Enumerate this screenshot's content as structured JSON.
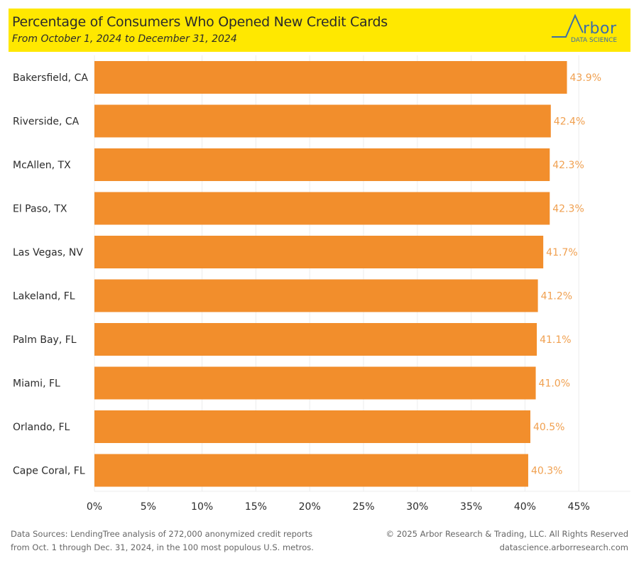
{
  "header": {
    "title": "Percentage of Consumers Who Opened New Credit Cards",
    "subtitle": "From October 1, 2024 to December 31, 2024",
    "logo_main": "rbor",
    "logo_sub": "DATA SCIENCE",
    "logo_text": "Arbor DATA SCIENCE"
  },
  "colors": {
    "header_bg": "#ffe800",
    "bar": "#f28e2c",
    "value_label": "#f0a050",
    "logo": "#3d6ea8"
  },
  "chart_data": {
    "type": "bar",
    "orientation": "horizontal",
    "title": "Percentage of Consumers Who Opened New Credit Cards",
    "subtitle": "From October 1, 2024 to December 31, 2024",
    "xlabel": "",
    "ylabel": "",
    "categories": [
      "Bakersfield, CA",
      "Riverside, CA",
      "McAllen, TX",
      "El Paso, TX",
      "Las Vegas, NV",
      "Lakeland, FL",
      "Palm Bay, FL",
      "Miami, FL",
      "Orlando, FL",
      "Cape Coral, FL"
    ],
    "values": [
      43.9,
      42.4,
      42.3,
      42.3,
      41.7,
      41.2,
      41.1,
      41.0,
      40.5,
      40.3
    ],
    "value_labels": [
      "43.9%",
      "42.4%",
      "42.3%",
      "42.3%",
      "41.7%",
      "41.2%",
      "41.1%",
      "41.0%",
      "40.5%",
      "40.3%"
    ],
    "xlim": [
      0,
      49.5
    ],
    "xticks": [
      0,
      5,
      10,
      15,
      20,
      25,
      30,
      35,
      40,
      45
    ],
    "xtick_labels": [
      "0%",
      "5%",
      "10%",
      "15%",
      "20%",
      "25%",
      "30%",
      "35%",
      "40%",
      "45%"
    ],
    "grid": true,
    "legend": "none"
  },
  "footer": {
    "source_line1": "Data Sources: LendingTree analysis of 272,000 anonymized credit reports",
    "source_line2": "from Oct. 1 through Dec. 31, 2024, in the 100 most populous U.S. metros.",
    "copyright": "© 2025 Arbor Research & Trading, LLC. All Rights Reserved",
    "website": "datascience.arborresearch.com"
  }
}
